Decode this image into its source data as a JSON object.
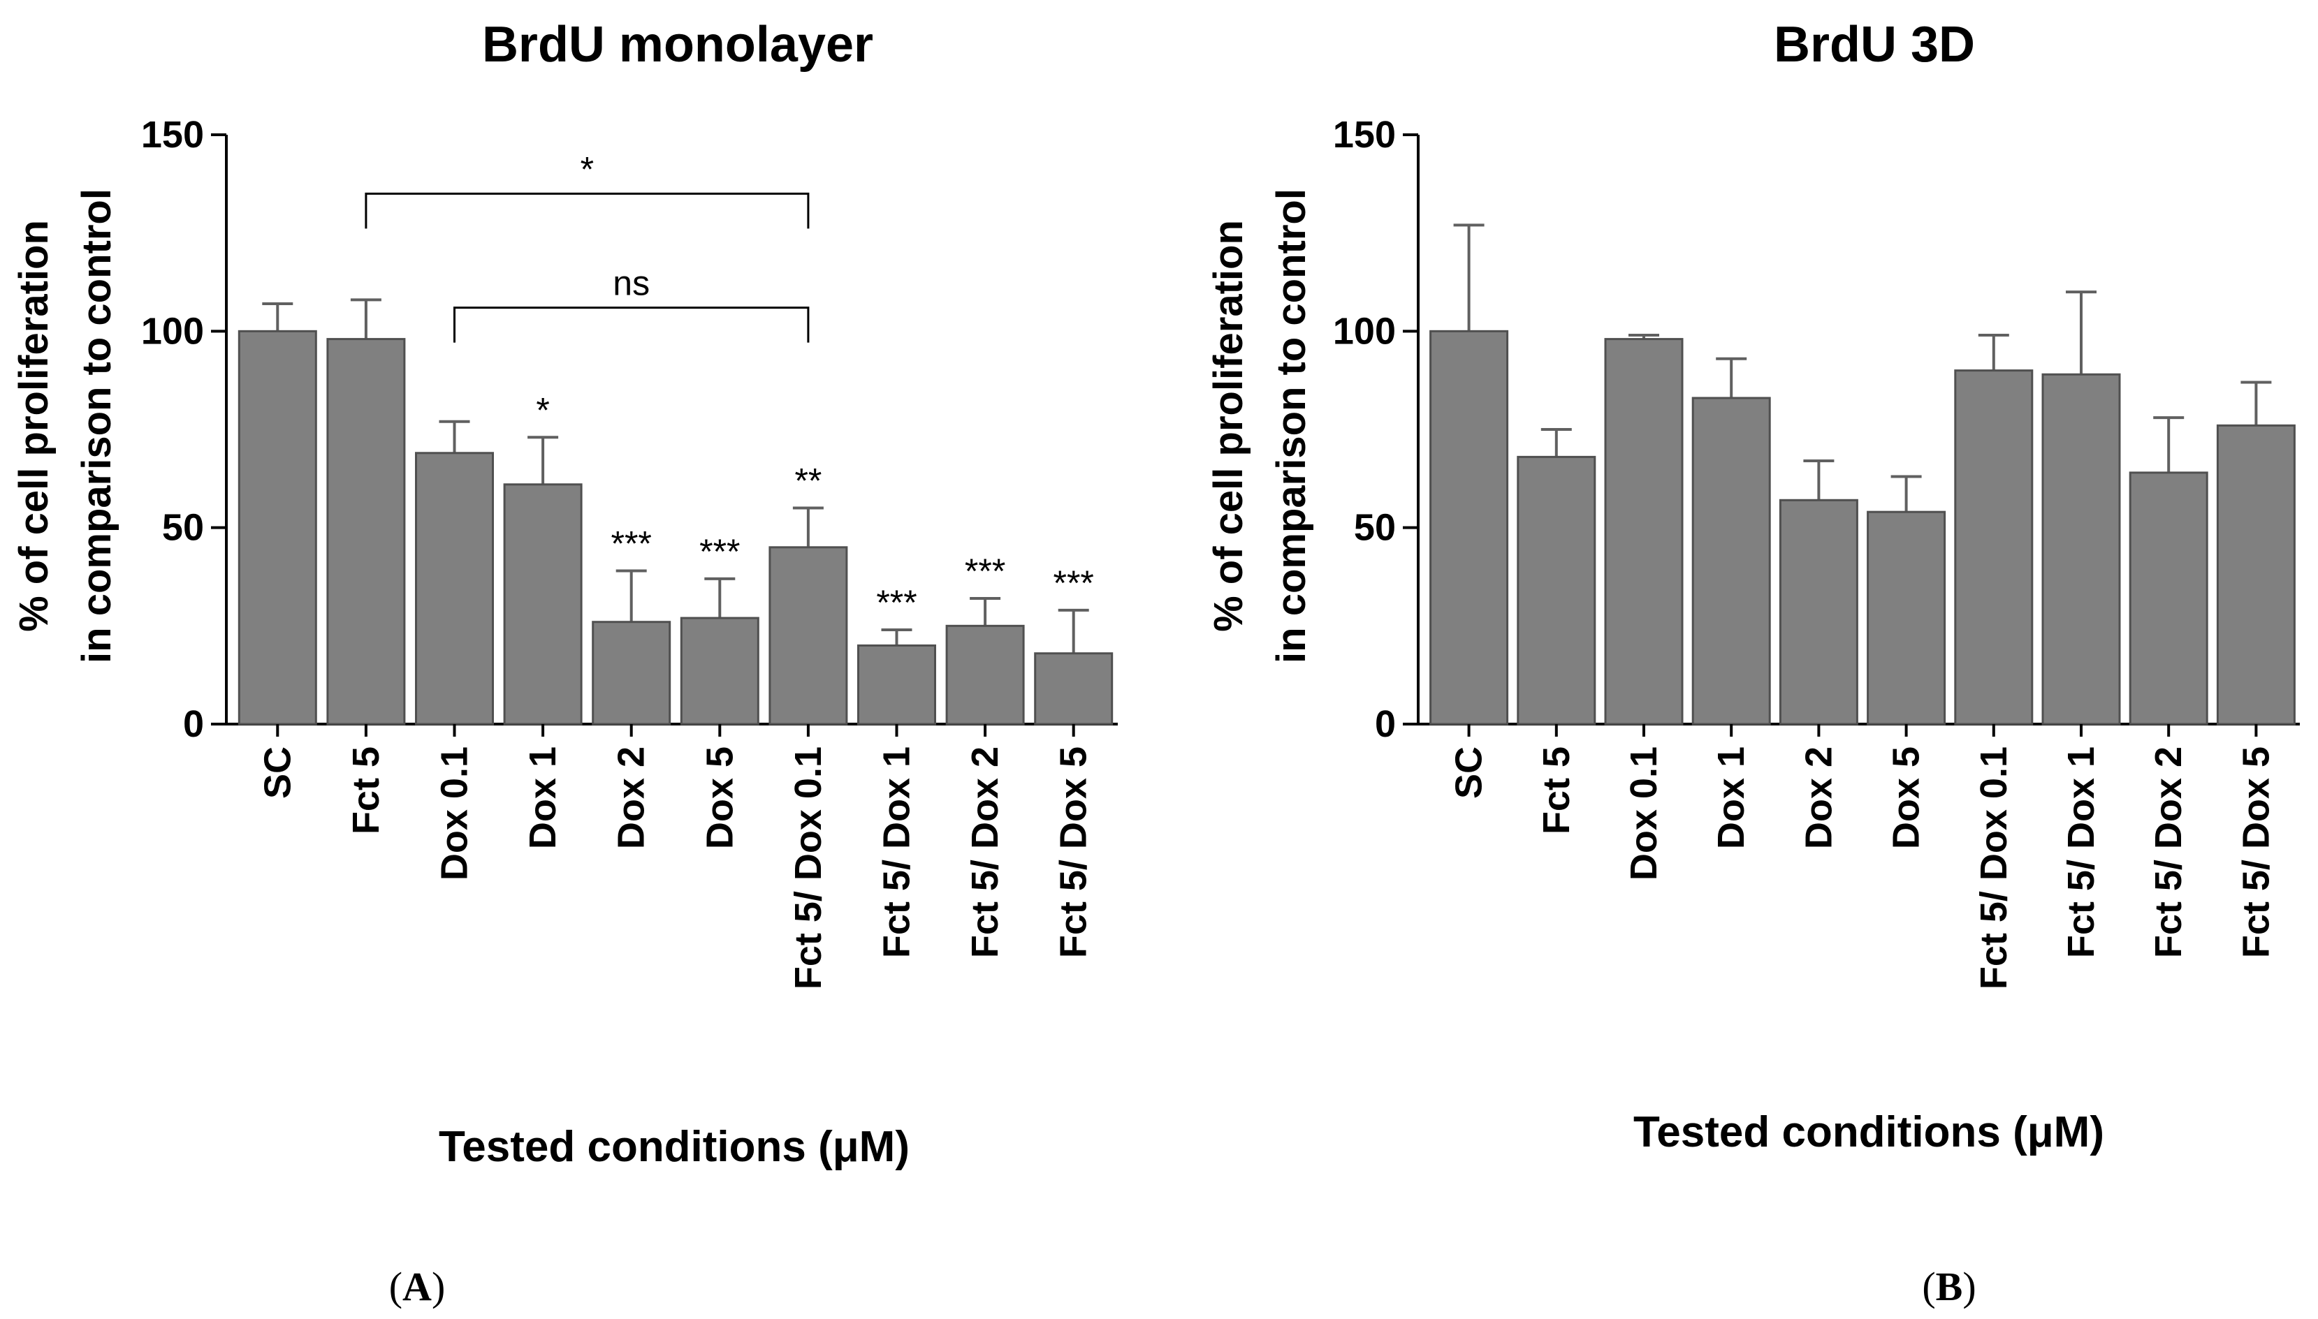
{
  "chart_data": [
    {
      "type": "bar",
      "title": "BrdU monolayer",
      "panel_label": {
        "open": "(",
        "letter": "A",
        "close": ")"
      },
      "xlabel": "Tested conditions (μM)",
      "ylabel_lines": [
        "% of cell proliferation",
        "in comparison to control"
      ],
      "ylim": [
        0,
        150
      ],
      "yticks": [
        0,
        50,
        100,
        150
      ],
      "bar_color": "#808080",
      "categories": [
        "SC",
        "Fct 5",
        "Dox 0.1",
        "Dox 1",
        "Dox 2",
        "Dox 5",
        "Fct 5/ Dox 0.1",
        "Fct 5/ Dox 1",
        "Fct 5/ Dox 2",
        "Fct 5/ Dox 5"
      ],
      "values": [
        100,
        98,
        69,
        61,
        26,
        27,
        45,
        20,
        25,
        18
      ],
      "errors": [
        7,
        10,
        8,
        12,
        13,
        10,
        10,
        4,
        7,
        11
      ],
      "significance": [
        "",
        "",
        "",
        "*",
        "***",
        "***",
        "**",
        "***",
        "***",
        "***"
      ],
      "brackets": [
        {
          "from": 1,
          "to": 6,
          "level": 135,
          "label": "*"
        },
        {
          "from": 2,
          "to": 6,
          "level": 106,
          "label": "ns"
        }
      ]
    },
    {
      "type": "bar",
      "title": "BrdU 3D",
      "panel_label": {
        "open": "(",
        "letter": "B",
        "close": ")"
      },
      "xlabel": "Tested conditions (μM)",
      "ylabel_lines": [
        "% of cell proliferation",
        "in comparison to control"
      ],
      "ylim": [
        0,
        150
      ],
      "yticks": [
        0,
        50,
        100,
        150
      ],
      "bar_color": "#808080",
      "categories": [
        "SC",
        "Fct 5",
        "Dox 0.1",
        "Dox 1",
        "Dox 2",
        "Dox 5",
        "Fct 5/ Dox 0.1",
        "Fct 5/ Dox 1",
        "Fct 5/ Dox 2",
        "Fct 5/ Dox 5"
      ],
      "values": [
        100,
        68,
        98,
        83,
        57,
        54,
        90,
        89,
        64,
        76
      ],
      "errors": [
        27,
        7,
        1,
        10,
        10,
        9,
        9,
        21,
        14,
        11
      ],
      "significance": [
        "",
        "",
        "",
        "",
        "",
        "",
        "",
        "",
        "",
        ""
      ],
      "brackets": []
    }
  ]
}
